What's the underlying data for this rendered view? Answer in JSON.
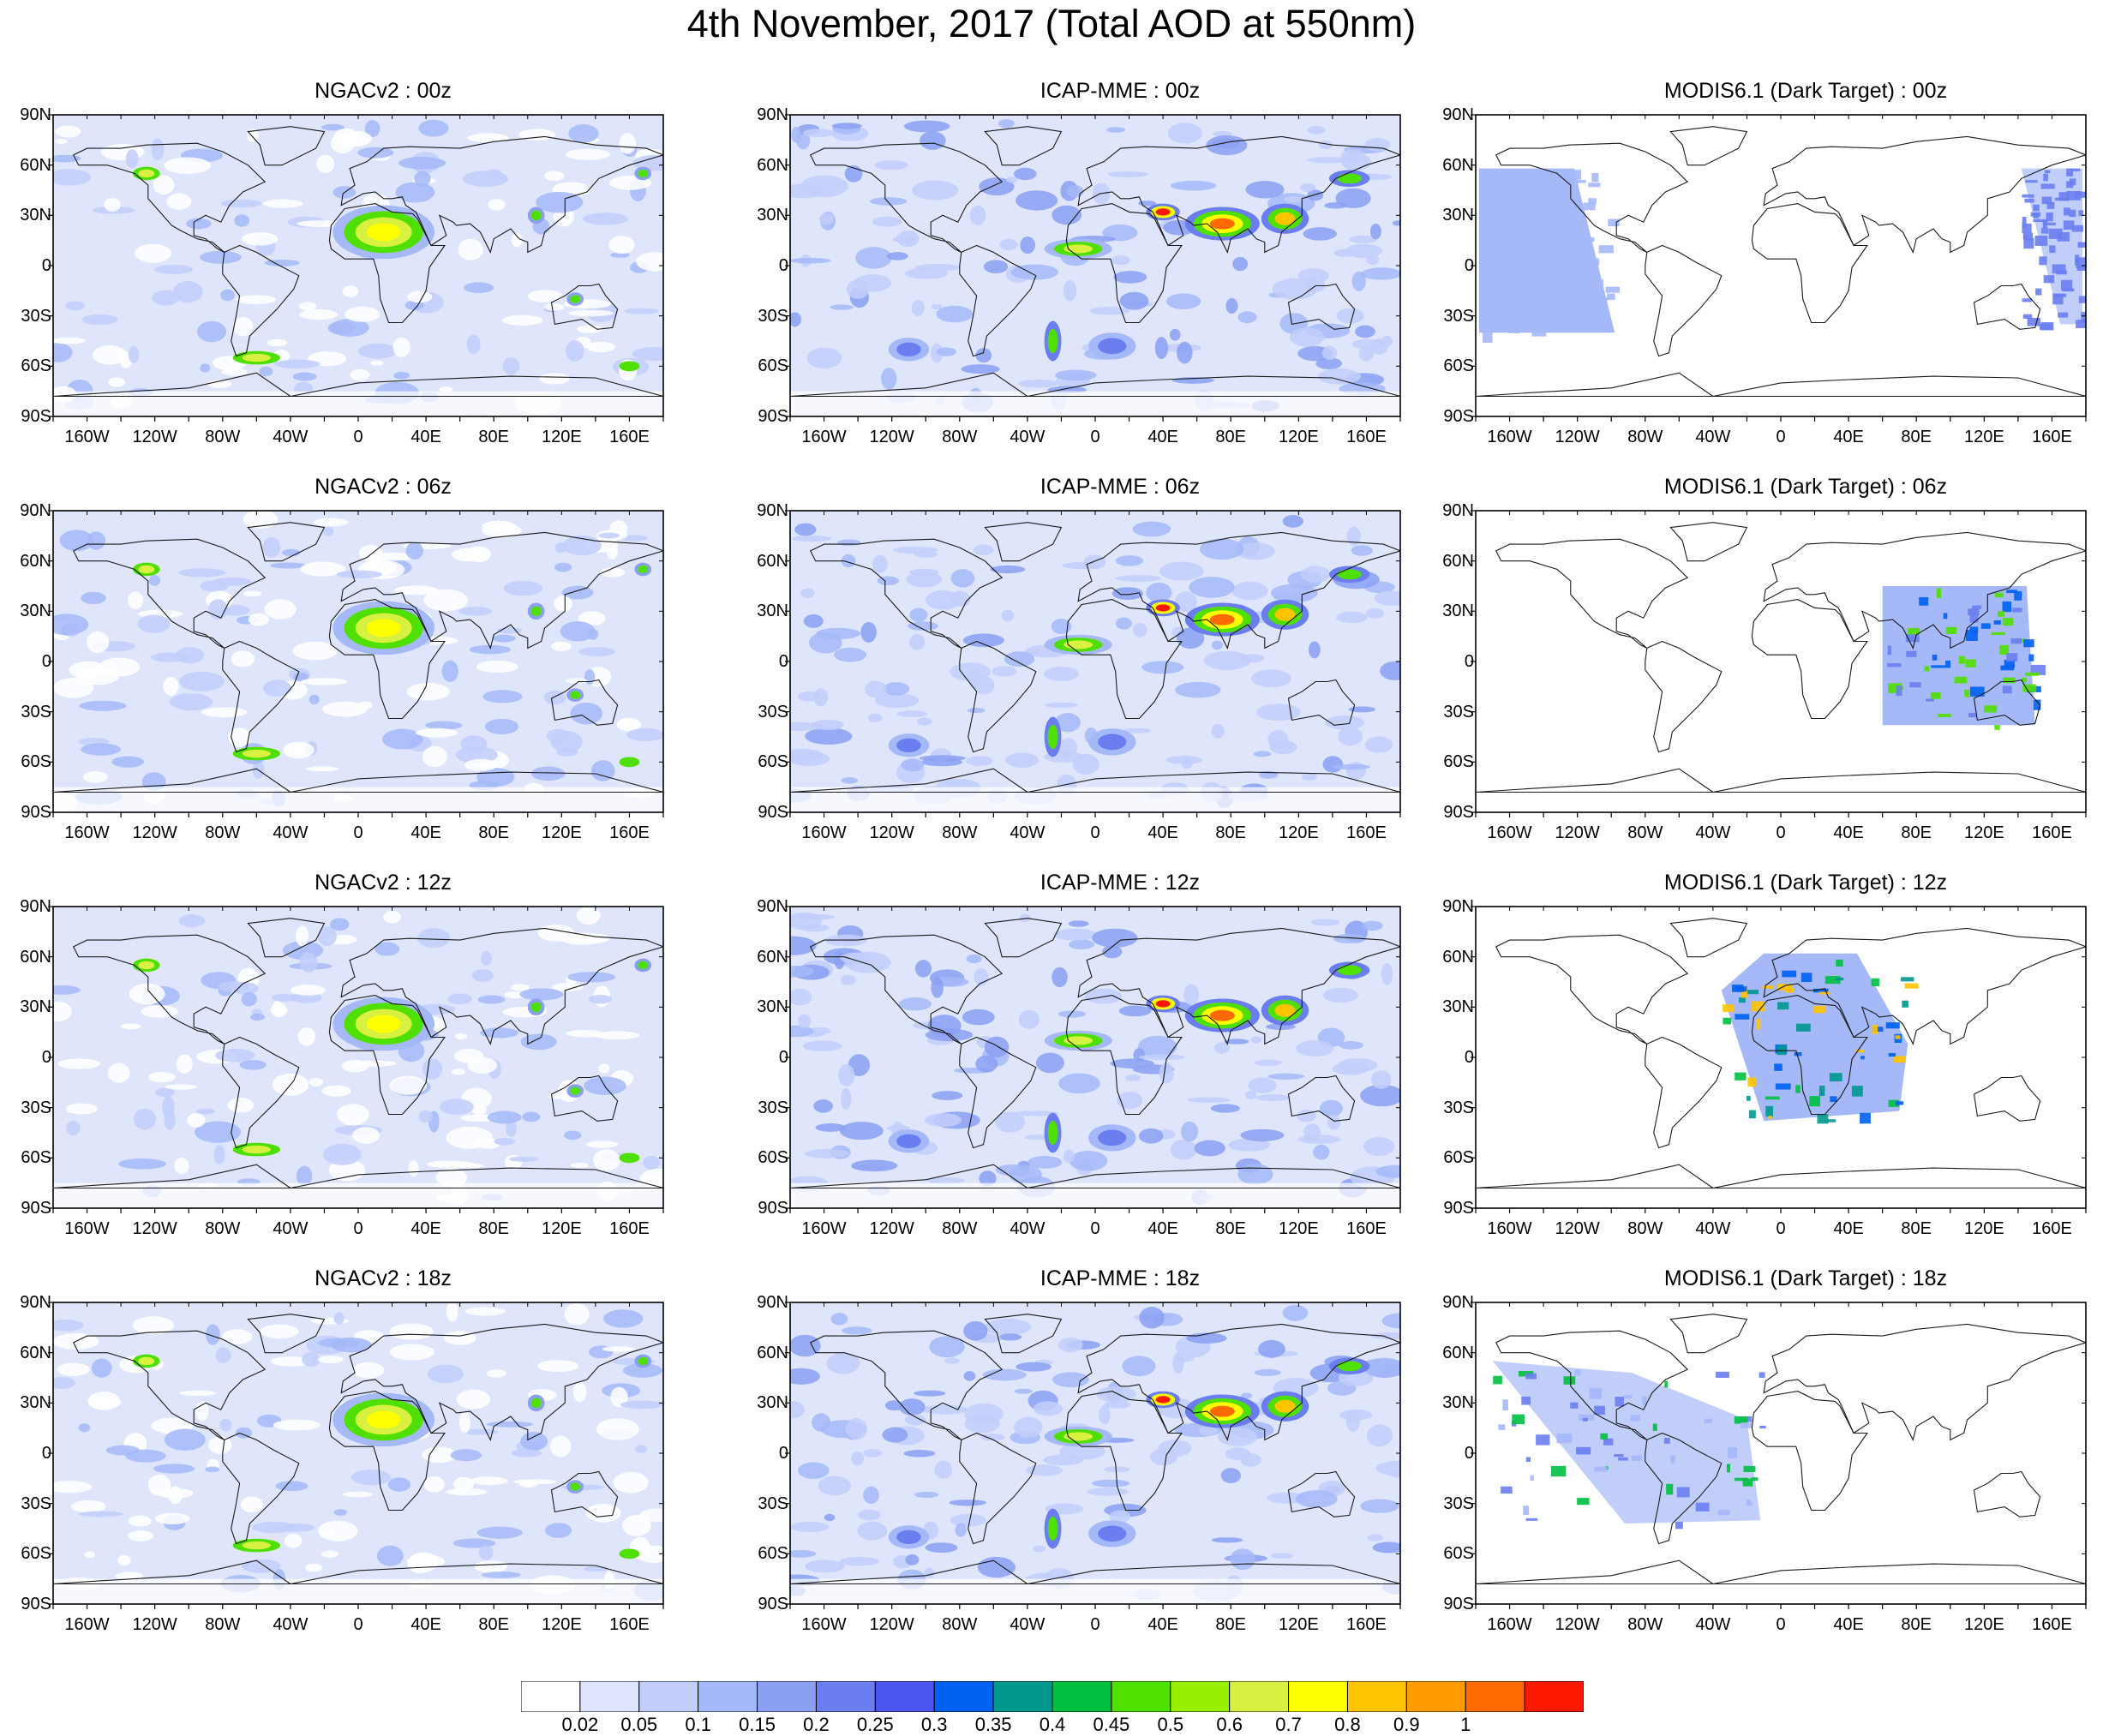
{
  "title": "4th November, 2017 (Total AOD at 550nm)",
  "colors": {
    "water_bg": "#dfe6fb",
    "land_outline": "#1a1a1a",
    "frame": "#000000"
  },
  "lat_labels": [
    "90N",
    "60N",
    "30N",
    "0",
    "30S",
    "60S",
    "90S"
  ],
  "lon_labels": [
    "160W",
    "120W",
    "80W",
    "40W",
    "0",
    "40E",
    "80E",
    "120E",
    "160E"
  ],
  "panels": [
    {
      "title": "NGACv2 : 00z",
      "type": "model",
      "level": "med"
    },
    {
      "title": "ICAP-MME : 00z",
      "type": "model",
      "level": "high"
    },
    {
      "title": "MODIS6.1 (Dark Target) : 00z",
      "type": "satellite",
      "swath": "pacific"
    },
    {
      "title": "NGACv2 : 06z",
      "type": "model",
      "level": "med"
    },
    {
      "title": "ICAP-MME : 06z",
      "type": "model",
      "level": "high"
    },
    {
      "title": "MODIS6.1 (Dark Target) : 06z",
      "type": "satellite",
      "swath": "asia"
    },
    {
      "title": "NGACv2 : 12z",
      "type": "model",
      "level": "med"
    },
    {
      "title": "ICAP-MME : 12z",
      "type": "model",
      "level": "high"
    },
    {
      "title": "MODIS6.1 (Dark Target) : 12z",
      "type": "satellite",
      "swath": "africa"
    },
    {
      "title": "NGACv2 : 18z",
      "type": "model",
      "level": "med"
    },
    {
      "title": "ICAP-MME : 18z",
      "type": "model",
      "level": "high"
    },
    {
      "title": "MODIS6.1 (Dark Target) : 18z",
      "type": "satellite",
      "swath": "americas"
    }
  ],
  "colorbar": {
    "labels": [
      "0.02",
      "0.05",
      "0.1",
      "0.15",
      "0.2",
      "0.25",
      "0.3",
      "0.35",
      "0.4",
      "0.45",
      "0.5",
      "0.6",
      "0.7",
      "0.8",
      "0.9",
      "1"
    ],
    "colors": [
      "#ffffff",
      "#dde4fb",
      "#c2cefa",
      "#a5b8f8",
      "#8ba0f2",
      "#6a7ef0",
      "#4d55f0",
      "#0060f0",
      "#00978f",
      "#00c040",
      "#50e000",
      "#98f000",
      "#d8f040",
      "#ffff00",
      "#ffc400",
      "#ff9c00",
      "#ff6a00",
      "#ff1800"
    ]
  }
}
